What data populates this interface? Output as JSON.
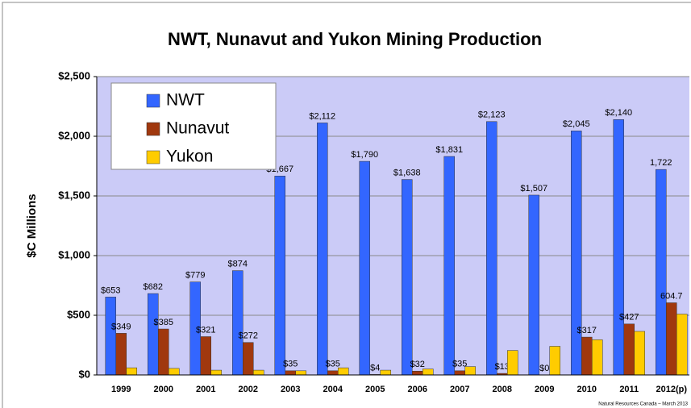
{
  "chart_data": {
    "type": "bar",
    "title": "NWT, Nunavut and Yukon Mining Production",
    "y_label": "$C Millions",
    "footnote": "Natural Resources Canada – March 2013",
    "categories": [
      "1999",
      "2000",
      "2001",
      "2002",
      "2003",
      "2004",
      "2005",
      "2006",
      "2007",
      "2008",
      "2009",
      "2010",
      "2011",
      "2012(p)"
    ],
    "series": [
      {
        "name": "NWT",
        "color": "#3366ff",
        "values": [
          653,
          682,
          779,
          874,
          1667,
          2112,
          1790,
          1638,
          1831,
          2123,
          1507,
          2045,
          2140,
          1722
        ],
        "value_labels": [
          "$653",
          "$682",
          "$779",
          "$874",
          "$1,667",
          "$2,112",
          "$1,790",
          "$1,638",
          "$1,831",
          "$2,123",
          "$1,507",
          "$2,045",
          "$2,140",
          "1,722"
        ]
      },
      {
        "name": "Nunavut",
        "color": "#a0380e",
        "values": [
          349,
          385,
          321,
          272,
          35,
          35,
          4,
          32,
          35,
          13,
          0,
          317,
          427,
          604.7
        ],
        "value_labels": [
          "$349",
          "$385",
          "$321",
          "$272",
          "$35",
          "$35",
          "$4",
          "$32",
          "$35",
          "$13",
          "$0",
          "$317",
          "$427",
          "604.7"
        ]
      },
      {
        "name": "Yukon",
        "color": "#ffcc00",
        "values": [
          60,
          55,
          40,
          40,
          35,
          60,
          40,
          50,
          70,
          205,
          240,
          295,
          365,
          510
        ]
      }
    ],
    "ylim": [
      0,
      2500
    ],
    "yticks": [
      {
        "value": 0,
        "label": "$0"
      },
      {
        "value": 500,
        "label": "$500"
      },
      {
        "value": 1000,
        "label": "$1,000"
      },
      {
        "value": 1500,
        "label": "$1,500"
      },
      {
        "value": 2000,
        "label": "$2,000"
      },
      {
        "value": 2500,
        "label": "$2,500"
      }
    ],
    "grid": true
  }
}
